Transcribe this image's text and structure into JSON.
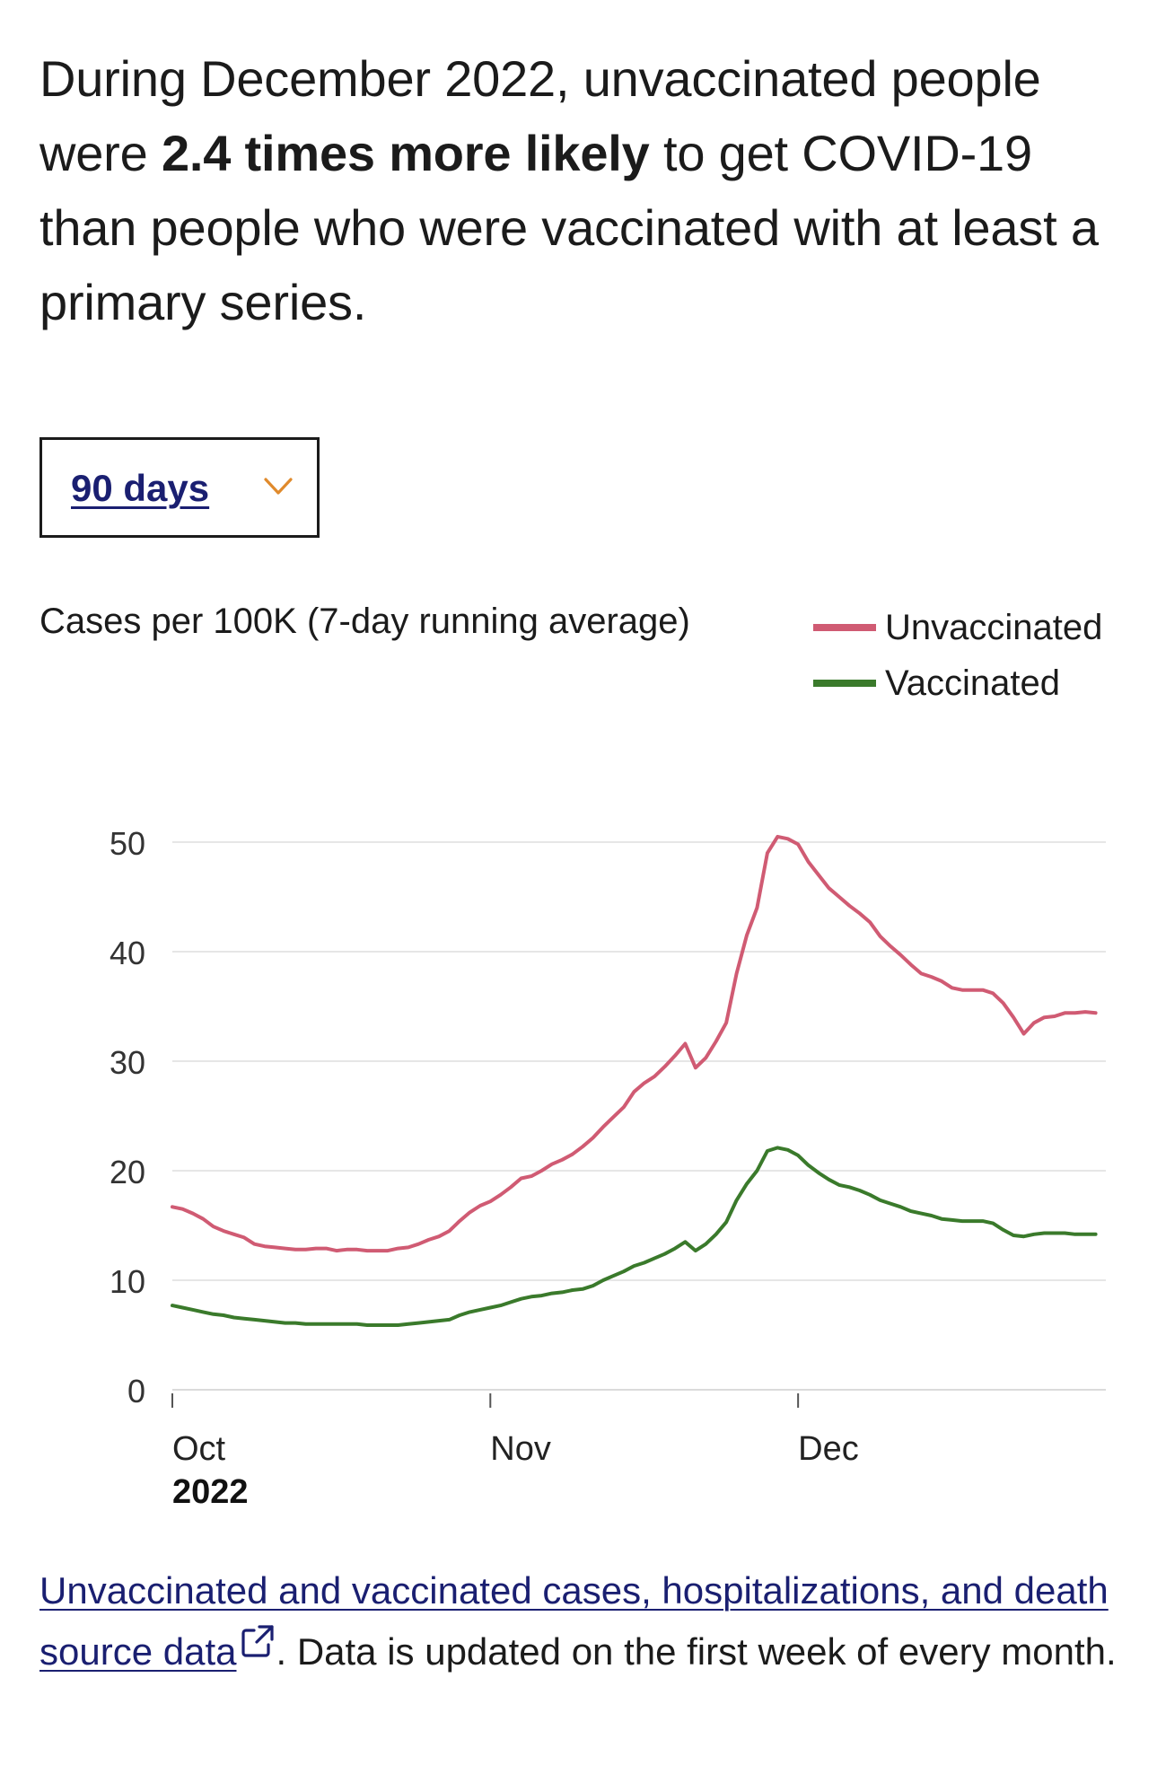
{
  "headline": {
    "before": "During December 2022, unvaccinated people were ",
    "emphasis": "2.4 times more likely",
    "after": " to get COVID-19 than people who were vaccinated with at least a primary series."
  },
  "range_select": {
    "selected": "90 days",
    "icon": "chevron-down-icon",
    "icon_color": "#e08a2c"
  },
  "colors": {
    "unvaccinated": "#d05b73",
    "vaccinated": "#3a7a2b",
    "grid": "#dddddd",
    "link": "#1a1f71"
  },
  "chart_data": {
    "type": "line",
    "title": "Cases per 100K (7-day running average)",
    "xlabel": "",
    "ylabel": "Cases per 100K (7-day running average)",
    "ylim": [
      0,
      50
    ],
    "yticks": [
      "0",
      "10",
      "20",
      "30",
      "40",
      "50"
    ],
    "xticks": [
      {
        "day": 0,
        "label": "Oct",
        "sublabel": "2022"
      },
      {
        "day": 31,
        "label": "Nov",
        "sublabel": ""
      },
      {
        "day": 61,
        "label": "Dec",
        "sublabel": ""
      }
    ],
    "x_range_days": [
      0,
      91
    ],
    "legend": [
      "Unvaccinated",
      "Vaccinated"
    ],
    "legend_position": "top-right",
    "series": [
      {
        "name": "Unvaccinated",
        "points": [
          [
            0,
            16.7
          ],
          [
            1,
            16.5
          ],
          [
            2,
            16.1
          ],
          [
            3,
            15.6
          ],
          [
            4,
            14.9
          ],
          [
            5,
            14.5
          ],
          [
            6,
            14.2
          ],
          [
            7,
            13.9
          ],
          [
            8,
            13.3
          ],
          [
            9,
            13.1
          ],
          [
            10,
            13.0
          ],
          [
            11,
            12.9
          ],
          [
            12,
            12.8
          ],
          [
            13,
            12.8
          ],
          [
            14,
            12.9
          ],
          [
            15,
            12.9
          ],
          [
            16,
            12.7
          ],
          [
            17,
            12.8
          ],
          [
            18,
            12.8
          ],
          [
            19,
            12.7
          ],
          [
            20,
            12.7
          ],
          [
            21,
            12.7
          ],
          [
            22,
            12.9
          ],
          [
            23,
            13.0
          ],
          [
            24,
            13.3
          ],
          [
            25,
            13.7
          ],
          [
            26,
            14.0
          ],
          [
            27,
            14.5
          ],
          [
            28,
            15.4
          ],
          [
            29,
            16.2
          ],
          [
            30,
            16.8
          ],
          [
            31,
            17.2
          ],
          [
            32,
            17.8
          ],
          [
            33,
            18.5
          ],
          [
            34,
            19.3
          ],
          [
            35,
            19.5
          ],
          [
            36,
            20.0
          ],
          [
            37,
            20.6
          ],
          [
            38,
            21.0
          ],
          [
            39,
            21.5
          ],
          [
            40,
            22.2
          ],
          [
            41,
            23.0
          ],
          [
            42,
            24.0
          ],
          [
            43,
            24.9
          ],
          [
            44,
            25.8
          ],
          [
            45,
            27.2
          ],
          [
            46,
            28.0
          ],
          [
            47,
            28.6
          ],
          [
            48,
            29.5
          ],
          [
            49,
            30.5
          ],
          [
            50,
            31.6
          ],
          [
            51,
            29.4
          ],
          [
            52,
            30.3
          ],
          [
            53,
            31.8
          ],
          [
            54,
            33.5
          ],
          [
            55,
            38.0
          ],
          [
            56,
            41.5
          ],
          [
            57,
            44.0
          ],
          [
            58,
            49.0
          ],
          [
            59,
            50.5
          ],
          [
            60,
            50.3
          ],
          [
            61,
            49.8
          ],
          [
            62,
            48.2
          ],
          [
            63,
            47.0
          ],
          [
            64,
            45.8
          ],
          [
            65,
            45.0
          ],
          [
            66,
            44.2
          ],
          [
            67,
            43.5
          ],
          [
            68,
            42.7
          ],
          [
            69,
            41.4
          ],
          [
            70,
            40.5
          ],
          [
            71,
            39.7
          ],
          [
            72,
            38.8
          ],
          [
            73,
            38.0
          ],
          [
            74,
            37.7
          ],
          [
            75,
            37.3
          ],
          [
            76,
            36.7
          ],
          [
            77,
            36.5
          ],
          [
            78,
            36.5
          ],
          [
            79,
            36.5
          ],
          [
            80,
            36.2
          ],
          [
            81,
            35.3
          ],
          [
            82,
            34.0
          ],
          [
            83,
            32.5
          ],
          [
            84,
            33.5
          ],
          [
            85,
            34.0
          ],
          [
            86,
            34.1
          ],
          [
            87,
            34.4
          ],
          [
            88,
            34.4
          ],
          [
            89,
            34.5
          ],
          [
            90,
            34.4
          ]
        ]
      },
      {
        "name": "Vaccinated",
        "points": [
          [
            0,
            7.7
          ],
          [
            1,
            7.5
          ],
          [
            2,
            7.3
          ],
          [
            3,
            7.1
          ],
          [
            4,
            6.9
          ],
          [
            5,
            6.8
          ],
          [
            6,
            6.6
          ],
          [
            7,
            6.5
          ],
          [
            8,
            6.4
          ],
          [
            9,
            6.3
          ],
          [
            10,
            6.2
          ],
          [
            11,
            6.1
          ],
          [
            12,
            6.1
          ],
          [
            13,
            6.0
          ],
          [
            14,
            6.0
          ],
          [
            15,
            6.0
          ],
          [
            16,
            6.0
          ],
          [
            17,
            6.0
          ],
          [
            18,
            6.0
          ],
          [
            19,
            5.9
          ],
          [
            20,
            5.9
          ],
          [
            21,
            5.9
          ],
          [
            22,
            5.9
          ],
          [
            23,
            6.0
          ],
          [
            24,
            6.1
          ],
          [
            25,
            6.2
          ],
          [
            26,
            6.3
          ],
          [
            27,
            6.4
          ],
          [
            28,
            6.8
          ],
          [
            29,
            7.1
          ],
          [
            30,
            7.3
          ],
          [
            31,
            7.5
          ],
          [
            32,
            7.7
          ],
          [
            33,
            8.0
          ],
          [
            34,
            8.3
          ],
          [
            35,
            8.5
          ],
          [
            36,
            8.6
          ],
          [
            37,
            8.8
          ],
          [
            38,
            8.9
          ],
          [
            39,
            9.1
          ],
          [
            40,
            9.2
          ],
          [
            41,
            9.5
          ],
          [
            42,
            10.0
          ],
          [
            43,
            10.4
          ],
          [
            44,
            10.8
          ],
          [
            45,
            11.3
          ],
          [
            46,
            11.6
          ],
          [
            47,
            12.0
          ],
          [
            48,
            12.4
          ],
          [
            49,
            12.9
          ],
          [
            50,
            13.5
          ],
          [
            51,
            12.7
          ],
          [
            52,
            13.3
          ],
          [
            53,
            14.2
          ],
          [
            54,
            15.3
          ],
          [
            55,
            17.3
          ],
          [
            56,
            18.8
          ],
          [
            57,
            20.0
          ],
          [
            58,
            21.8
          ],
          [
            59,
            22.1
          ],
          [
            60,
            21.9
          ],
          [
            61,
            21.4
          ],
          [
            62,
            20.5
          ],
          [
            63,
            19.8
          ],
          [
            64,
            19.2
          ],
          [
            65,
            18.7
          ],
          [
            66,
            18.5
          ],
          [
            67,
            18.2
          ],
          [
            68,
            17.8
          ],
          [
            69,
            17.3
          ],
          [
            70,
            17.0
          ],
          [
            71,
            16.7
          ],
          [
            72,
            16.3
          ],
          [
            73,
            16.1
          ],
          [
            74,
            15.9
          ],
          [
            75,
            15.6
          ],
          [
            76,
            15.5
          ],
          [
            77,
            15.4
          ],
          [
            78,
            15.4
          ],
          [
            79,
            15.4
          ],
          [
            80,
            15.2
          ],
          [
            81,
            14.6
          ],
          [
            82,
            14.1
          ],
          [
            83,
            14.0
          ],
          [
            84,
            14.2
          ],
          [
            85,
            14.3
          ],
          [
            86,
            14.3
          ],
          [
            87,
            14.3
          ],
          [
            88,
            14.2
          ],
          [
            89,
            14.2
          ],
          [
            90,
            14.2
          ]
        ]
      }
    ]
  },
  "footer": {
    "link_text": "Unvaccinated and vaccinated cases, hospitalizations, and death source data",
    "link_icon": "external-link-icon",
    "trailing_text": ". Data is updated on the first week of every month."
  }
}
